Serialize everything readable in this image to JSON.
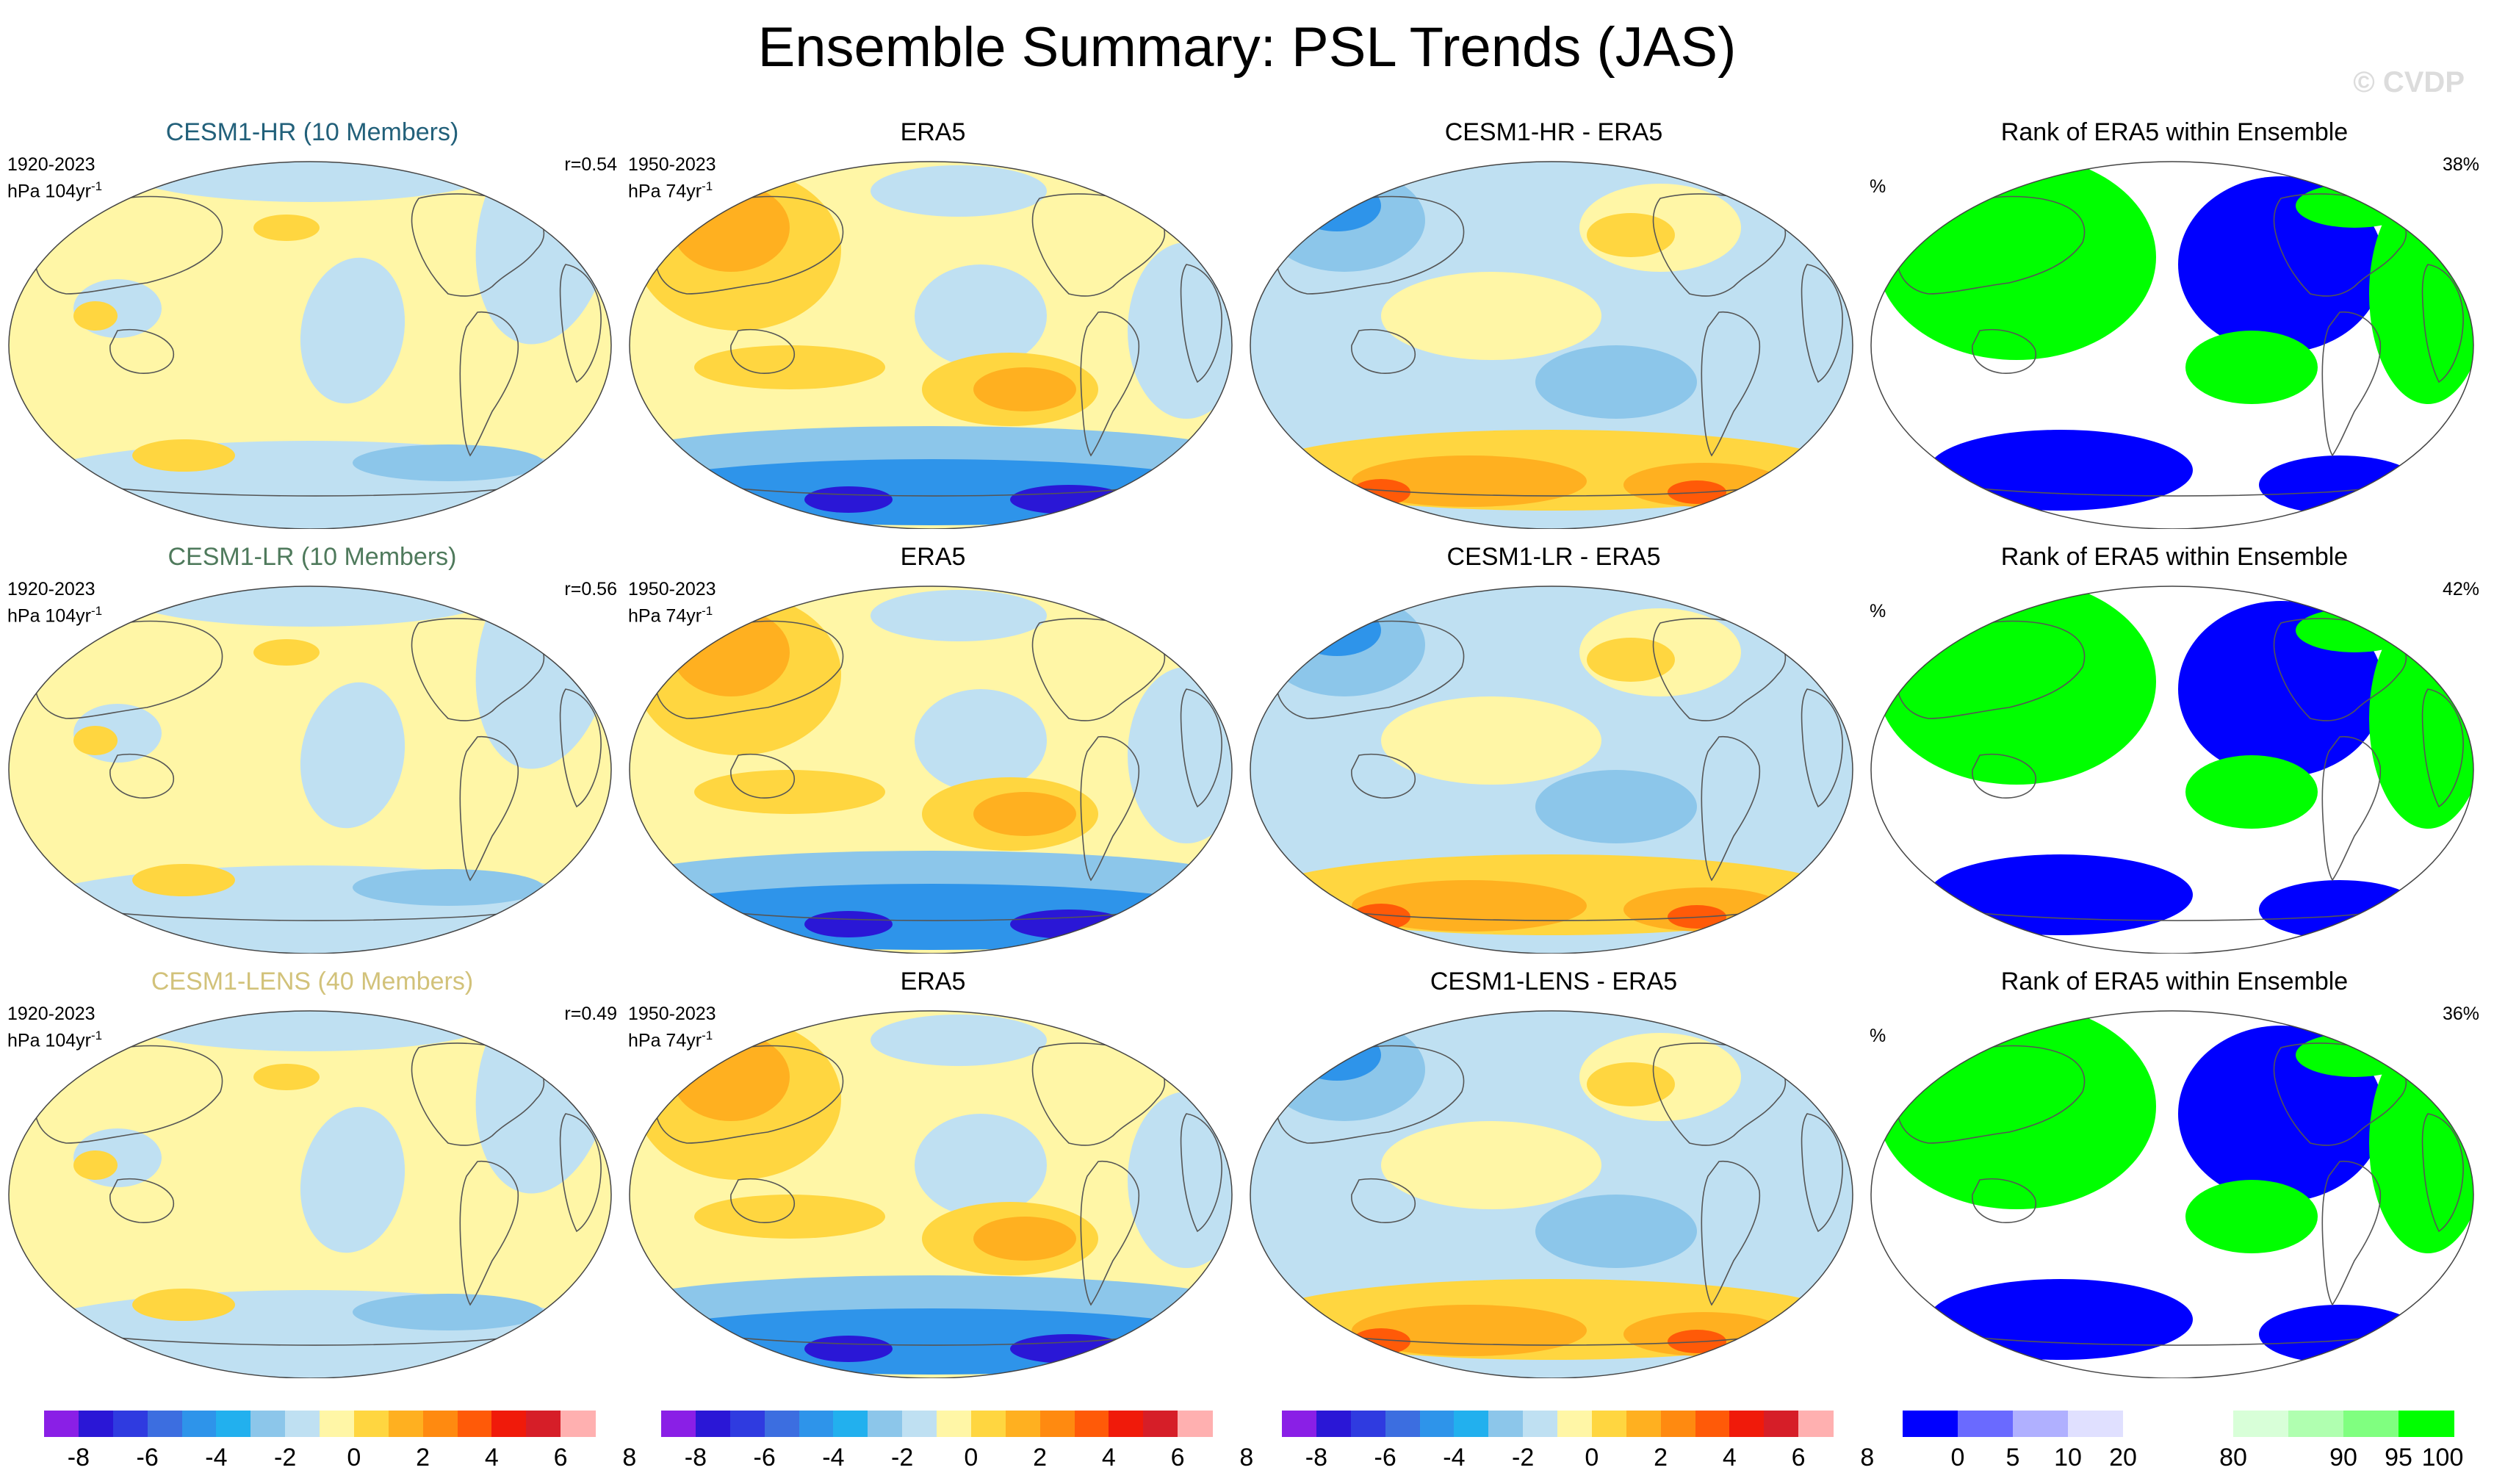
{
  "title": "Ensemble Summary: PSL Trends (JAS)",
  "watermark": "© CVDP",
  "rows": [
    {
      "model": {
        "title": "CESM1-HR (10 Members)",
        "period": "1920-2023",
        "units": "hPa 104yr",
        "exp": "-1",
        "r": "r=0.54",
        "color": "#22607a"
      },
      "obs": {
        "title": "ERA5",
        "period": "1950-2023",
        "units": "hPa 74yr",
        "exp": "-1"
      },
      "diff": {
        "title": "CESM1-HR - ERA5"
      },
      "rank": {
        "title": "Rank of ERA5 within Ensemble",
        "unit": "%",
        "value": "38%"
      }
    },
    {
      "model": {
        "title": "CESM1-LR (10 Members)",
        "period": "1920-2023",
        "units": "hPa 104yr",
        "exp": "-1",
        "r": "r=0.56",
        "color": "#4f7a5c"
      },
      "obs": {
        "title": "ERA5",
        "period": "1950-2023",
        "units": "hPa 74yr",
        "exp": "-1"
      },
      "diff": {
        "title": "CESM1-LR - ERA5"
      },
      "rank": {
        "title": "Rank of ERA5 within Ensemble",
        "unit": "%",
        "value": "42%"
      }
    },
    {
      "model": {
        "title": "CESM1-LENS (40 Members)",
        "period": "1920-2023",
        "units": "hPa 104yr",
        "exp": "-1",
        "r": "r=0.49",
        "color": "#d2c27a"
      },
      "obs": {
        "title": "ERA5",
        "period": "1950-2023",
        "units": "hPa 74yr",
        "exp": "-1"
      },
      "diff": {
        "title": "CESM1-LENS - ERA5"
      },
      "rank": {
        "title": "Rank of ERA5 within Ensemble",
        "unit": "%",
        "value": "36%"
      }
    }
  ],
  "colorbars": {
    "trend": {
      "colors": [
        "#8a1fe6",
        "#2a17d6",
        "#2f3be0",
        "#3c6ee0",
        "#2e94ea",
        "#22b0ee",
        "#8cc6ea",
        "#bfe0f2",
        "#fff6a6",
        "#ffd640",
        "#ffb020",
        "#ff8a10",
        "#ff5a08",
        "#f01a0a",
        "#d61e28",
        "#ffb0b0"
      ],
      "ticks": [
        "-8",
        "-6",
        "-4",
        "-2",
        "0",
        "2",
        "4",
        "6",
        "8"
      ]
    },
    "rank": {
      "colors": [
        "#0000ff",
        "#6a6aff",
        "#b0b0ff",
        "#e0e0ff",
        "#ffffff",
        "#ffffff",
        "#d8ffd8",
        "#b0ffb0",
        "#80ff80",
        "#00ff00"
      ],
      "ticks": [
        "0",
        "5",
        "10",
        "20",
        "80",
        "90",
        "95",
        "100"
      ]
    }
  },
  "fill_colors": {
    "land_outline": "#555555",
    "neutral_pos": "#fff6a6",
    "neutral_neg": "#bfe0f2",
    "pos_mid": "#ffd640",
    "pos_strong": "#ffb020",
    "pos_max": "#ff5a08",
    "neg_mid": "#8cc6ea",
    "neg_strong": "#2e94ea",
    "neg_max": "#2a17d6",
    "rank_low": "#0000ff",
    "rank_high": "#00ff00"
  }
}
